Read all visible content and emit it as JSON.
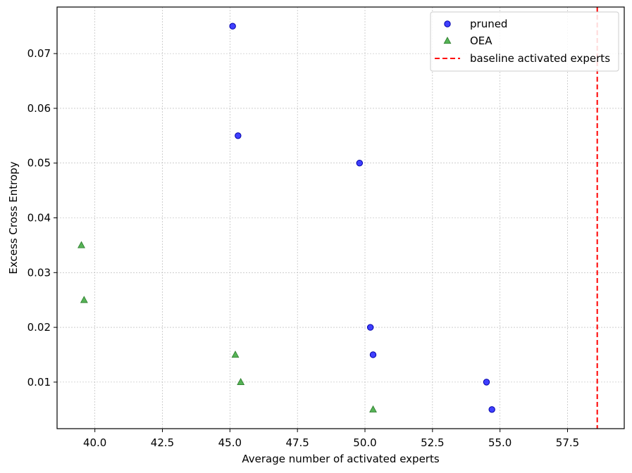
{
  "chart_data": {
    "type": "scatter",
    "xlabel": "Average number of activated experts",
    "ylabel": "Excess Cross Entropy",
    "xlim": [
      38.6,
      59.6
    ],
    "ylim": [
      0.0015,
      0.0785
    ],
    "xticks": [
      40.0,
      42.5,
      45.0,
      47.5,
      50.0,
      52.5,
      55.0,
      57.5
    ],
    "xtick_labels": [
      "40.0",
      "42.5",
      "45.0",
      "47.5",
      "50.0",
      "52.5",
      "55.0",
      "57.5"
    ],
    "yticks": [
      0.01,
      0.02,
      0.03,
      0.04,
      0.05,
      0.06,
      0.07
    ],
    "ytick_labels": [
      "0.01",
      "0.02",
      "0.03",
      "0.04",
      "0.05",
      "0.06",
      "0.07"
    ],
    "grid": true,
    "legend_position": "top-right",
    "series": [
      {
        "name": "pruned",
        "marker": "circle",
        "color": "#0000ff",
        "points": [
          {
            "x": 45.1,
            "y": 0.075
          },
          {
            "x": 45.3,
            "y": 0.055
          },
          {
            "x": 49.8,
            "y": 0.05
          },
          {
            "x": 50.2,
            "y": 0.02
          },
          {
            "x": 50.3,
            "y": 0.015
          },
          {
            "x": 54.5,
            "y": 0.01
          },
          {
            "x": 54.7,
            "y": 0.005
          }
        ]
      },
      {
        "name": "OEA",
        "marker": "triangle",
        "color": "#2ca02c",
        "points": [
          {
            "x": 39.5,
            "y": 0.035
          },
          {
            "x": 39.6,
            "y": 0.025
          },
          {
            "x": 45.2,
            "y": 0.015
          },
          {
            "x": 45.4,
            "y": 0.01
          },
          {
            "x": 50.3,
            "y": 0.005
          }
        ]
      }
    ],
    "reference_lines": [
      {
        "name": "baseline activated experts",
        "orientation": "vertical",
        "x": 58.6,
        "style": "dashed",
        "color": "#ff0000"
      }
    ]
  }
}
